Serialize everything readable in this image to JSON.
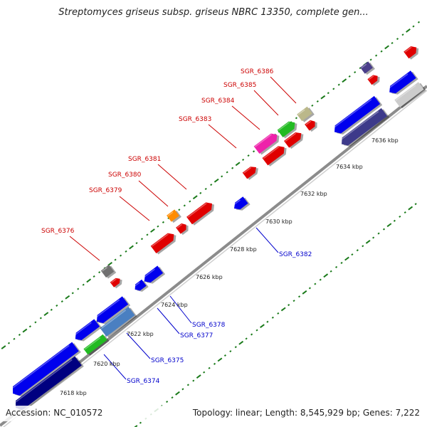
{
  "title": "Streptomyces griseus subsp. griseus NBRC 13350, complete gen...",
  "footer": {
    "accession": "Accession: NC_010572",
    "stats": "Topology: linear; Length: 8,545,929 bp; Genes: 7,222"
  },
  "colors": {
    "backbone": "#8c8c8c",
    "tick_green": "#1a7a1a",
    "label_red": "#cc0000",
    "label_blue": "#0000cc"
  },
  "ticks": [
    "7618 kbp",
    "7620 kbp",
    "7622 kbp",
    "7624 kbp",
    "7626 kbp",
    "7628 kbp",
    "7630 kbp",
    "7632 kbp",
    "7634 kbp",
    "7636 kbp"
  ],
  "forward_labels": [
    "SGR_6376",
    "SGR_6379",
    "SGR_6380",
    "SGR_6381",
    "SGR_6383",
    "SGR_6384",
    "SGR_6385",
    "SGR_6386"
  ],
  "reverse_labels": [
    "SGR_6374",
    "SGR_6375",
    "SGR_6377",
    "SGR_6378",
    "SGR_6382"
  ]
}
